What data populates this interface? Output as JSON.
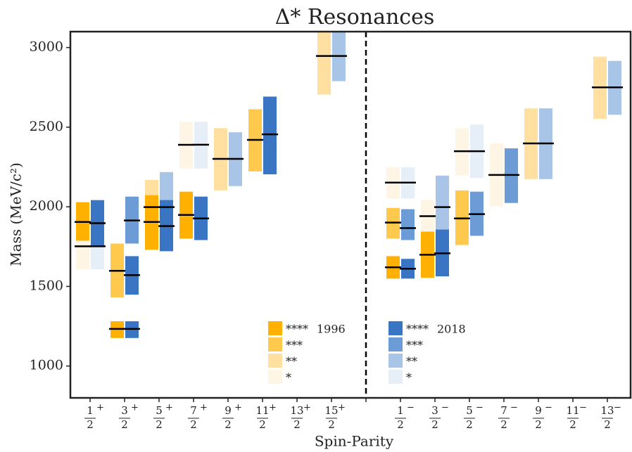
{
  "chart_data": {
    "type": "range-bar",
    "title": "Δ* Resonances",
    "xlabel": "Spin-Parity",
    "ylabel": "Mass (MeV/c²)",
    "categories": [
      {
        "num": "1",
        "den": "2",
        "parity": "+"
      },
      {
        "num": "3",
        "den": "2",
        "parity": "+"
      },
      {
        "num": "5",
        "den": "2",
        "parity": "+"
      },
      {
        "num": "7",
        "den": "2",
        "parity": "+"
      },
      {
        "num": "9",
        "den": "2",
        "parity": "+"
      },
      {
        "num": "11",
        "den": "2",
        "parity": "+"
      },
      {
        "num": "13",
        "den": "2",
        "parity": "+"
      },
      {
        "num": "15",
        "den": "2",
        "parity": "+"
      },
      null,
      {
        "num": "1",
        "den": "2",
        "parity": "−"
      },
      {
        "num": "3",
        "den": "2",
        "parity": "−"
      },
      {
        "num": "5",
        "den": "2",
        "parity": "−"
      },
      {
        "num": "7",
        "den": "2",
        "parity": "−"
      },
      {
        "num": "9",
        "den": "2",
        "parity": "−"
      },
      {
        "num": "11",
        "den": "2",
        "parity": "−"
      },
      {
        "num": "13",
        "den": "2",
        "parity": "−"
      }
    ],
    "ylim": [
      800,
      3100
    ],
    "yticks": [
      1000,
      1500,
      2000,
      2500,
      3000
    ],
    "divider": 8,
    "star_labels": [
      "****",
      "***",
      "**",
      "*"
    ],
    "series": [
      {
        "name": "1996",
        "colors": [
          "#ffb000",
          "#ffc94d",
          "#ffe0a0",
          "#fef5e4"
        ],
        "items": [
          {
            "category": 0,
            "stars": 1,
            "low": 1607,
            "high": 1900,
            "mass": 1752
          },
          {
            "category": 0,
            "stars": 4,
            "low": 1787,
            "high": 2029,
            "mass": 1905
          },
          {
            "category": 1,
            "stars": 3,
            "low": 1431,
            "high": 1769,
            "mass": 1598
          },
          {
            "category": 1,
            "stars": 4,
            "low": 1176,
            "high": 1281,
            "mass": 1233
          },
          {
            "category": 2,
            "stars": 2,
            "low": 1822,
            "high": 2169,
            "mass": 1998
          },
          {
            "category": 2,
            "stars": 4,
            "low": 1730,
            "high": 2073,
            "mass": 1905
          },
          {
            "category": 3,
            "stars": 1,
            "low": 2240,
            "high": 2534,
            "mass": 2389
          },
          {
            "category": 3,
            "stars": 4,
            "low": 1800,
            "high": 2095,
            "mass": 1949
          },
          {
            "category": 4,
            "stars": 2,
            "low": 2103,
            "high": 2494,
            "mass": 2301
          },
          {
            "category": 5,
            "stars": 3,
            "low": 2222,
            "high": 2613,
            "mass": 2420
          },
          {
            "category": 7,
            "stars": 2,
            "low": 2705,
            "high": 3100,
            "mass": 2947
          },
          {
            "category": 9,
            "stars": 1,
            "low": 2051,
            "high": 2248,
            "mass": 2152
          },
          {
            "category": 9,
            "stars": 3,
            "low": 1800,
            "high": 1993,
            "mass": 1901
          },
          {
            "category": 9,
            "stars": 4,
            "low": 1549,
            "high": 1690,
            "mass": 1620
          },
          {
            "category": 10,
            "stars": 1,
            "low": 1844,
            "high": 2042,
            "mass": 1941
          },
          {
            "category": 10,
            "stars": 4,
            "low": 1554,
            "high": 1844,
            "mass": 1699
          },
          {
            "category": 11,
            "stars": 1,
            "low": 2196,
            "high": 2494,
            "mass": 2349
          },
          {
            "category": 11,
            "stars": 3,
            "low": 1760,
            "high": 2103,
            "mass": 1927
          },
          {
            "category": 12,
            "stars": 1,
            "low": 2002,
            "high": 2398,
            "mass": 2200
          },
          {
            "category": 13,
            "stars": 2,
            "low": 2174,
            "high": 2618,
            "mass": 2398
          },
          {
            "category": 15,
            "stars": 2,
            "low": 2552,
            "high": 2943,
            "mass": 2750
          }
        ]
      },
      {
        "name": "2018",
        "colors": [
          "#3a75c4",
          "#6d9bd6",
          "#a8c4e6",
          "#e6eef8"
        ],
        "items": [
          {
            "category": 0,
            "stars": 1,
            "low": 1607,
            "high": 1900,
            "mass": 1752
          },
          {
            "category": 0,
            "stars": 4,
            "low": 1747,
            "high": 2042,
            "mass": 1897
          },
          {
            "category": 1,
            "stars": 3,
            "low": 1769,
            "high": 2064,
            "mass": 1914
          },
          {
            "category": 1,
            "stars": 4,
            "low": 1448,
            "high": 1690,
            "mass": 1571
          },
          {
            "category": 1,
            "stars": 4,
            "low": 1176,
            "high": 1281,
            "mass": 1233
          },
          {
            "category": 2,
            "stars": 2,
            "low": 1778,
            "high": 2218,
            "mass": 1998
          },
          {
            "category": 2,
            "stars": 4,
            "low": 1721,
            "high": 2042,
            "mass": 1879
          },
          {
            "category": 3,
            "stars": 1,
            "low": 2240,
            "high": 2534,
            "mass": 2390
          },
          {
            "category": 3,
            "stars": 4,
            "low": 1791,
            "high": 2064,
            "mass": 1927
          },
          {
            "category": 4,
            "stars": 2,
            "low": 2130,
            "high": 2468,
            "mass": 2301
          },
          {
            "category": 5,
            "stars": 4,
            "low": 2204,
            "high": 2692,
            "mass": 2455
          },
          {
            "category": 7,
            "stars": 2,
            "low": 2789,
            "high": 3100,
            "mass": 2947
          },
          {
            "category": 9,
            "stars": 1,
            "low": 2051,
            "high": 2248,
            "mass": 2152
          },
          {
            "category": 9,
            "stars": 3,
            "low": 1791,
            "high": 1985,
            "mass": 1866
          },
          {
            "category": 9,
            "stars": 4,
            "low": 1549,
            "high": 1673,
            "mass": 1611
          },
          {
            "category": 10,
            "stars": 2,
            "low": 1844,
            "high": 2196,
            "mass": 1998
          },
          {
            "category": 10,
            "stars": 4,
            "low": 1563,
            "high": 1857,
            "mass": 1708
          },
          {
            "category": 11,
            "stars": 1,
            "low": 2182,
            "high": 2516,
            "mass": 2349
          },
          {
            "category": 11,
            "stars": 3,
            "low": 1818,
            "high": 2095,
            "mass": 1954
          },
          {
            "category": 12,
            "stars": 3,
            "low": 2024,
            "high": 2367,
            "mass": 2200
          },
          {
            "category": 13,
            "stars": 2,
            "low": 2174,
            "high": 2618,
            "mass": 2398
          },
          {
            "category": 15,
            "stars": 2,
            "low": 2578,
            "high": 2916,
            "mass": 2750
          }
        ]
      }
    ]
  }
}
